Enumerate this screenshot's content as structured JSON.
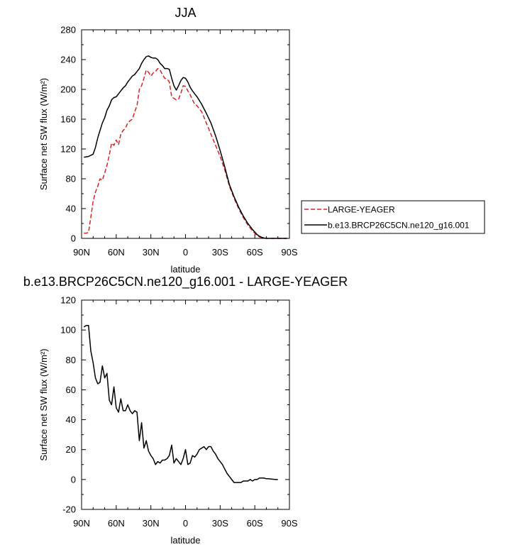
{
  "chart_data": [
    {
      "type": "line",
      "title": "JJA",
      "xlabel": "latitude",
      "ylabel": "Surface net SW flux (W/m²)",
      "xlim": [
        90,
        -90
      ],
      "ylim": [
        0,
        280
      ],
      "xticks": [
        90,
        60,
        30,
        0,
        -30,
        -60,
        -90
      ],
      "xticklabels": [
        "90N",
        "60N",
        "30N",
        "0",
        "30S",
        "60S",
        "90S"
      ],
      "yticks": [
        0,
        40,
        80,
        120,
        160,
        200,
        240,
        280
      ],
      "yticklabels": [
        "0",
        "40",
        "80",
        "120",
        "160",
        "200",
        "240",
        "280"
      ],
      "legend": {
        "placement": "right"
      },
      "series": [
        {
          "name": "LARGE-YEAGER",
          "color": "#dd2222",
          "dash": "dashed",
          "x": [
            88,
            86,
            84,
            82,
            80,
            78,
            76,
            74,
            72,
            70,
            68,
            66,
            64,
            62,
            60,
            58,
            56,
            54,
            52,
            50,
            48,
            46,
            44,
            42,
            40,
            38,
            36,
            34,
            32,
            30,
            28,
            26,
            24,
            22,
            20,
            18,
            16,
            14,
            12,
            10,
            8,
            6,
            4,
            2,
            0,
            -2,
            -4,
            -6,
            -8,
            -10,
            -14,
            -18,
            -22,
            -26,
            -30,
            -34,
            -38,
            -42,
            -46,
            -50,
            -54,
            -58,
            -62,
            -64,
            -66,
            -68,
            -70,
            -75,
            -80,
            -85,
            -88
          ],
          "y": [
            7,
            7,
            8,
            28,
            50,
            62,
            70,
            80,
            78,
            88,
            98,
            112,
            128,
            125,
            132,
            126,
            140,
            145,
            148,
            155,
            158,
            160,
            170,
            178,
            200,
            205,
            215,
            226,
            223,
            218,
            222,
            224,
            228,
            226,
            220,
            215,
            214,
            210,
            190,
            188,
            186,
            187,
            195,
            205,
            204,
            198,
            193,
            186,
            180,
            178,
            170,
            155,
            140,
            125,
            110,
            92,
            70,
            54,
            40,
            28,
            18,
            10,
            4,
            2,
            1,
            0.5,
            0,
            0,
            0,
            0,
            0
          ]
        },
        {
          "name": "b.e13.BRCP26C5CN.ne120_g16.001",
          "color": "#000000",
          "dash": "solid",
          "x": [
            88,
            84,
            80,
            78,
            76,
            74,
            72,
            70,
            68,
            66,
            64,
            62,
            60,
            58,
            56,
            54,
            52,
            50,
            48,
            46,
            44,
            42,
            40,
            38,
            36,
            34,
            32,
            30,
            28,
            26,
            24,
            22,
            20,
            18,
            16,
            14,
            12,
            10,
            8,
            6,
            4,
            2,
            0,
            -2,
            -4,
            -6,
            -8,
            -10,
            -14,
            -18,
            -22,
            -26,
            -30,
            -34,
            -38,
            -42,
            -46,
            -50,
            -54,
            -58,
            -62,
            -64,
            -66,
            -68,
            -70,
            -75,
            -80,
            -85,
            -88
          ],
          "y": [
            109,
            110,
            113,
            122,
            135,
            145,
            155,
            162,
            172,
            178,
            186,
            189,
            190,
            194,
            198,
            202,
            205,
            210,
            214,
            218,
            220,
            224,
            228,
            235,
            240,
            244,
            245,
            243,
            242,
            242,
            240,
            235,
            232,
            228,
            228,
            227,
            215,
            205,
            199,
            205,
            212,
            216,
            215,
            210,
            203,
            198,
            194,
            190,
            180,
            168,
            155,
            138,
            118,
            96,
            72,
            56,
            42,
            30,
            20,
            12,
            5,
            3,
            1.5,
            0.5,
            0,
            0,
            0,
            0,
            0
          ]
        }
      ]
    },
    {
      "type": "line",
      "title": "b.e13.BRCP26C5CN.ne120_g16.001 - LARGE-YEAGER",
      "xlabel": "latitude",
      "ylabel": "Surface net SW flux (W/m²)",
      "xlim": [
        90,
        -90
      ],
      "ylim": [
        -20,
        120
      ],
      "xticks": [
        90,
        60,
        30,
        0,
        -30,
        -60,
        -90
      ],
      "xticklabels": [
        "90N",
        "60N",
        "30N",
        "0",
        "30S",
        "60S",
        "90S"
      ],
      "yticks": [
        -20,
        0,
        20,
        40,
        60,
        80,
        100,
        120
      ],
      "yticklabels": [
        "-20",
        "0",
        "20",
        "40",
        "60",
        "80",
        "100",
        "120"
      ],
      "series": [
        {
          "color": "#000000",
          "dash": "solid",
          "x": [
            88,
            86,
            84,
            82,
            80,
            78,
            76,
            74,
            72,
            70,
            68,
            66,
            64,
            62,
            60,
            58,
            56,
            54,
            52,
            50,
            48,
            46,
            44,
            42,
            40,
            38,
            36,
            34,
            32,
            30,
            28,
            26,
            24,
            22,
            20,
            18,
            16,
            14,
            12,
            10,
            8,
            6,
            4,
            2,
            0,
            -2,
            -4,
            -6,
            -8,
            -10,
            -12,
            -14,
            -16,
            -18,
            -20,
            -22,
            -24,
            -26,
            -28,
            -30,
            -32,
            -34,
            -36,
            -38,
            -40,
            -42,
            -44,
            -46,
            -48,
            -50,
            -52,
            -54,
            -56,
            -58,
            -60,
            -62,
            -64,
            -66,
            -68,
            -70,
            -72,
            -75,
            -78,
            -80
          ],
          "y": [
            102,
            103,
            103,
            86,
            78,
            68,
            64,
            65,
            76,
            68,
            71,
            53,
            50,
            62,
            48,
            45,
            54,
            46,
            46,
            50,
            46,
            44,
            46,
            45,
            26,
            38,
            21,
            26,
            19,
            16,
            14,
            10,
            12,
            11,
            13,
            13,
            14,
            16,
            23,
            11,
            14,
            12,
            10,
            14,
            20,
            10,
            11,
            16,
            15,
            17,
            20,
            21,
            22,
            20,
            22,
            22,
            19,
            17,
            14,
            12,
            10,
            7,
            4,
            2,
            0,
            -2,
            -2,
            -2,
            -2,
            -1,
            -1,
            -1,
            0,
            -1,
            0,
            0,
            1,
            1,
            1,
            0.5,
            0.5,
            0.2,
            0,
            0
          ]
        }
      ]
    }
  ]
}
